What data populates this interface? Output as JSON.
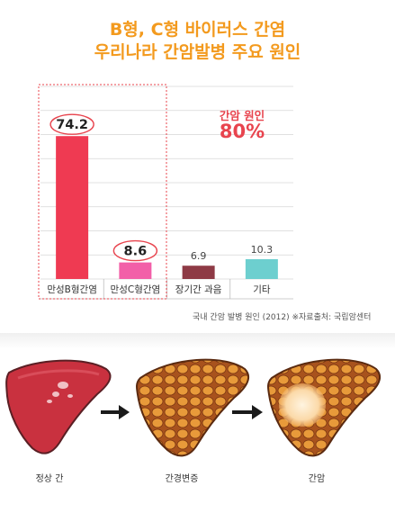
{
  "header": {
    "title_line1": "B형, C형 바이러스 간염",
    "title_line2": "우리나라 간암발병 주요 원인"
  },
  "callout": {
    "label": "간암 원인",
    "value": "80%"
  },
  "source_note": "국내 간암 발병 원인 (2012) ※자료출처: 국립암센터",
  "colors": {
    "title": "#f39a1e",
    "callout": "#e8444e",
    "highlight_border": "#e8444e"
  },
  "chart_data": {
    "type": "bar",
    "categories": [
      "만성B형간염",
      "만성C형간염",
      "장기간 과음",
      "기타"
    ],
    "values": [
      74.2,
      8.6,
      6.9,
      10.3
    ],
    "value_labels": [
      "74.2",
      "8.6",
      "6.9",
      "10.3"
    ],
    "colors": [
      "#ef3a52",
      "#f25fa8",
      "#8e3a45",
      "#6dcfcf"
    ],
    "highlighted": [
      true,
      true,
      false,
      false
    ],
    "ylim": [
      0,
      100
    ],
    "grid": true,
    "title": "",
    "xlabel": "",
    "ylabel": ""
  },
  "illustration": {
    "stages": [
      "정상 간",
      "간경변증",
      "간암"
    ]
  }
}
